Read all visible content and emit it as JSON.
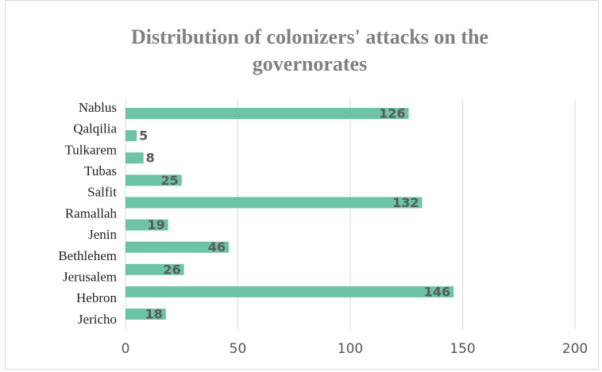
{
  "chart_data": {
    "type": "hbar",
    "title": "Distribution of colonizers' attacks on the governorates",
    "categories": [
      "Nablus",
      "Qalqilia",
      "Tulkarem",
      "Tubas",
      "Salfit",
      "Ramallah",
      "Jenin",
      "Bethlehem",
      "Jerusalem",
      "Hebron",
      "Jericho"
    ],
    "values": [
      126,
      5,
      8,
      25,
      132,
      19,
      46,
      26,
      146,
      18,
      null
    ],
    "color": "#6cc4a4",
    "xlim": [
      0,
      200
    ],
    "xticks": [
      0,
      50,
      100,
      150,
      200
    ],
    "grid": true
  }
}
